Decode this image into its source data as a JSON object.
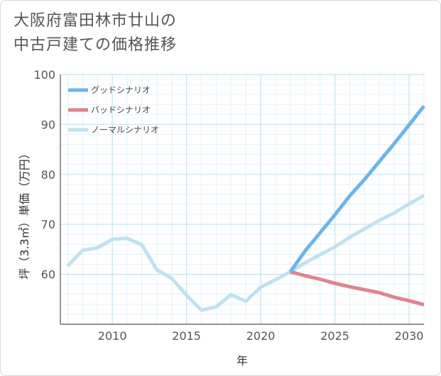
{
  "title_lines": [
    "大阪府富田林市廿山の",
    "中古戸建ての価格推移"
  ],
  "chart_data": {
    "type": "line",
    "xlabel": "年",
    "ylabel": "坪（3.3㎡）単価（万円）",
    "xlim": [
      2006.5,
      2031
    ],
    "ylim": [
      50,
      100
    ],
    "xticks": [
      2010,
      2015,
      2020,
      2025,
      2030
    ],
    "yticks": [
      60,
      70,
      80,
      90,
      100
    ],
    "grid": true,
    "legend_position": "top-left",
    "series": [
      {
        "name": "グッドシナリオ",
        "color": "#6bb5ec",
        "x": [
          2022,
          2023,
          2024,
          2025,
          2026,
          2027,
          2028,
          2029,
          2030,
          2031
        ],
        "y": [
          60.5,
          64.7,
          68.3,
          71.9,
          75.7,
          79.0,
          82.6,
          86.2,
          89.9,
          93.7
        ]
      },
      {
        "name": "バッドシナリオ",
        "color": "#e0838f",
        "x": [
          2022,
          2023,
          2024,
          2025,
          2026,
          2027,
          2028,
          2029,
          2030,
          2031
        ],
        "y": [
          60.5,
          59.7,
          59.0,
          58.2,
          57.5,
          56.9,
          56.3,
          55.4,
          54.7,
          53.9
        ]
      },
      {
        "name": "ノーマルシナリオ",
        "color": "#bfe2ef",
        "x": [
          2007,
          2008,
          2009,
          2010,
          2011,
          2012,
          2013,
          2014,
          2015,
          2016,
          2017,
          2018,
          2019,
          2020,
          2021,
          2022,
          2023,
          2024,
          2025,
          2026,
          2027,
          2028,
          2029,
          2030,
          2031
        ],
        "y": [
          61.7,
          64.8,
          65.3,
          67.0,
          67.2,
          65.9,
          60.9,
          59.2,
          55.8,
          52.8,
          53.5,
          55.9,
          54.6,
          57.4,
          58.9,
          60.5,
          62.3,
          63.9,
          65.5,
          67.4,
          69.1,
          70.8,
          72.3,
          74.1,
          75.8
        ]
      }
    ]
  }
}
